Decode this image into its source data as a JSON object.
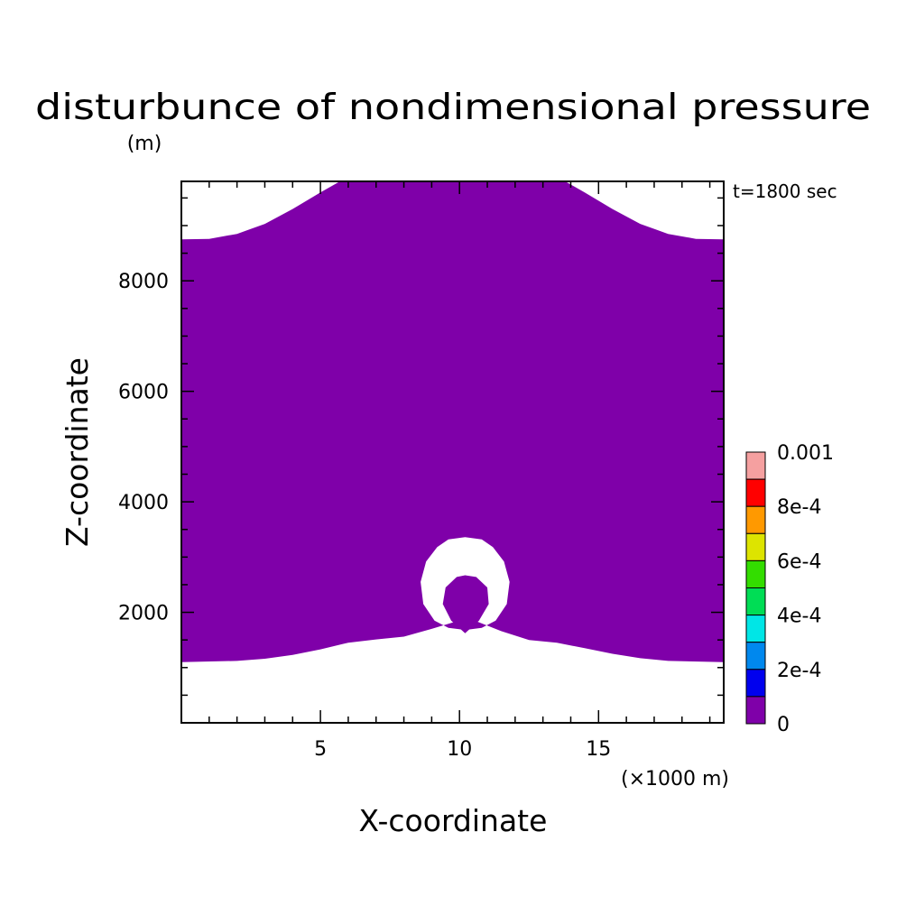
{
  "chart_data": {
    "type": "heatmap",
    "title": "disturbunce of nondimensional pressure",
    "y_unit": "(m)",
    "time_label": "t=1800 sec",
    "xlabel": "X-coordinate",
    "x_unit": "(×1000 m)",
    "ylabel": "Z-coordinate",
    "xlim": [
      0,
      19.5
    ],
    "ylim": [
      0,
      9800
    ],
    "x_ticks": [
      5,
      10,
      15
    ],
    "y_ticks": [
      2000,
      4000,
      6000,
      8000
    ],
    "x_minor_step": 1,
    "y_minor_step": 500,
    "fill_color": "#7f00a9",
    "region_top_boundary": [
      {
        "x": 0,
        "z": 8750
      },
      {
        "x": 1,
        "z": 8760
      },
      {
        "x": 2,
        "z": 8850
      },
      {
        "x": 3,
        "z": 9030
      },
      {
        "x": 4,
        "z": 9300
      },
      {
        "x": 5,
        "z": 9600
      },
      {
        "x": 5.7,
        "z": 9800
      },
      {
        "x": 13.8,
        "z": 9800
      },
      {
        "x": 14.5,
        "z": 9600
      },
      {
        "x": 15.5,
        "z": 9300
      },
      {
        "x": 16.5,
        "z": 9030
      },
      {
        "x": 17.5,
        "z": 8850
      },
      {
        "x": 18.5,
        "z": 8760
      },
      {
        "x": 19.5,
        "z": 8750
      }
    ],
    "region_bottom_boundary": [
      {
        "x": 0,
        "z": 1100
      },
      {
        "x": 2,
        "z": 1120
      },
      {
        "x": 3,
        "z": 1160
      },
      {
        "x": 4,
        "z": 1230
      },
      {
        "x": 5,
        "z": 1330
      },
      {
        "x": 6,
        "z": 1450
      },
      {
        "x": 7,
        "z": 1510
      },
      {
        "x": 8,
        "z": 1560
      },
      {
        "x": 9,
        "z": 1700
      },
      {
        "x": 10.3,
        "z": 1900
      },
      {
        "x": 11.5,
        "z": 1660
      },
      {
        "x": 12.5,
        "z": 1500
      },
      {
        "x": 13.5,
        "z": 1450
      },
      {
        "x": 14.5,
        "z": 1350
      },
      {
        "x": 15.5,
        "z": 1250
      },
      {
        "x": 16.5,
        "z": 1170
      },
      {
        "x": 17.5,
        "z": 1120
      },
      {
        "x": 19.5,
        "z": 1100
      }
    ],
    "holes": [
      [
        {
          "x": 8.6,
          "z": 2550
        },
        {
          "x": 8.8,
          "z": 2920
        },
        {
          "x": 9.2,
          "z": 3180
        },
        {
          "x": 9.6,
          "z": 3320
        },
        {
          "x": 10.2,
          "z": 3360
        },
        {
          "x": 10.8,
          "z": 3320
        },
        {
          "x": 11.2,
          "z": 3180
        },
        {
          "x": 11.6,
          "z": 2920
        },
        {
          "x": 11.8,
          "z": 2550
        },
        {
          "x": 11.7,
          "z": 2150
        },
        {
          "x": 11.3,
          "z": 1850
        },
        {
          "x": 10.8,
          "z": 1720
        },
        {
          "x": 10.2,
          "z": 1680
        },
        {
          "x": 9.6,
          "z": 1720
        },
        {
          "x": 9.1,
          "z": 1850
        },
        {
          "x": 8.7,
          "z": 2150
        }
      ]
    ],
    "islands": [
      [
        {
          "x": 9.4,
          "z": 2150
        },
        {
          "x": 9.5,
          "z": 2450
        },
        {
          "x": 9.9,
          "z": 2640
        },
        {
          "x": 10.2,
          "z": 2670
        },
        {
          "x": 10.6,
          "z": 2640
        },
        {
          "x": 11,
          "z": 2450
        },
        {
          "x": 11.05,
          "z": 2150
        },
        {
          "x": 10.7,
          "z": 1850
        },
        {
          "x": 10.2,
          "z": 1620
        },
        {
          "x": 9.7,
          "z": 1850
        }
      ]
    ],
    "legend": {
      "placement": "right",
      "labels": [
        "0.001",
        "8e-4",
        "6e-4",
        "4e-4",
        "2e-4",
        "0"
      ],
      "colors_top_to_bottom": [
        "#f5a0a0",
        "#ff0000",
        "#ff9900",
        "#dde400",
        "#33dd00",
        "#00dd55",
        "#00e6e6",
        "#0088ee",
        "#0000ee",
        "#7f00a9"
      ]
    }
  }
}
